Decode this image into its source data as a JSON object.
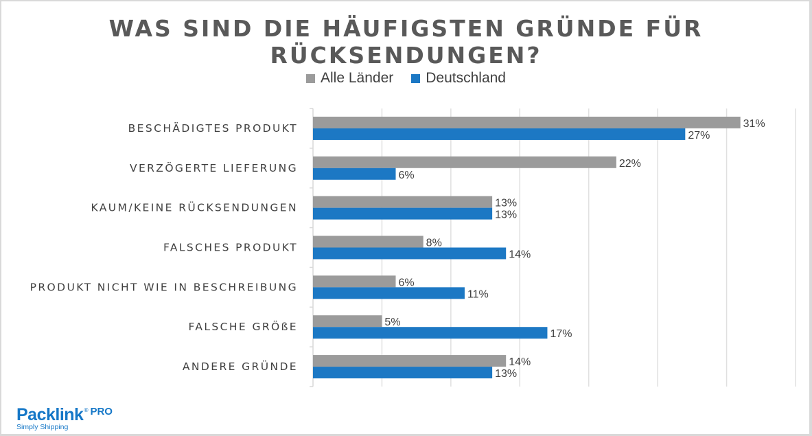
{
  "chart_data": {
    "type": "bar",
    "orientation": "horizontal",
    "title": "WAS SIND DIE HÄUFIGSTEN GRÜNDE FÜR RÜCKSENDUNGEN?",
    "xlabel": "",
    "ylabel": "",
    "xlim": [
      0,
      35
    ],
    "grid": true,
    "legend_position": "top",
    "categories": [
      "BESCHÄDIGTES PRODUKT",
      "VERZÖGERTE LIEFERUNG",
      "KAUM/KEINE RÜCKSENDUNGEN",
      "FALSCHES PRODUKT",
      "PRODUKT NICHT WIE IN BESCHREIBUNG",
      "FALSCHE GRÖßE",
      "ANDERE GRÜNDE"
    ],
    "series": [
      {
        "name": "Alle Länder",
        "color": "#9b9b9b",
        "values": [
          31,
          22,
          13,
          8,
          6,
          5,
          14
        ]
      },
      {
        "name": "Deutschland",
        "color": "#1c78c4",
        "values": [
          27,
          6,
          13,
          14,
          11,
          17,
          13
        ]
      }
    ],
    "value_suffix": "%"
  },
  "branding": {
    "logo_name": "Packlink",
    "logo_registered": "®",
    "logo_suffix": "PRO",
    "tagline": "Simply Shipping"
  }
}
